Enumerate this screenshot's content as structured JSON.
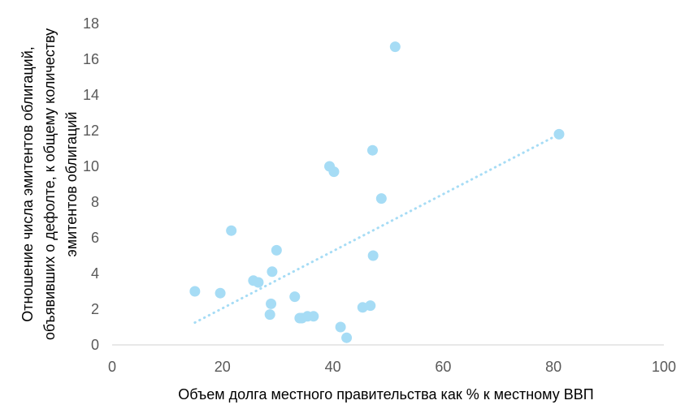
{
  "chart_data": {
    "type": "scatter",
    "xlabel": "Объем долга местного правительства как % к местному ВВП",
    "ylabel_lines": [
      "Отношение числа эмитентов облигаций,",
      "объявивших о дефолте, к общему количеству",
      "эмитентов облигаций"
    ],
    "xlim": [
      0,
      100
    ],
    "ylim": [
      0,
      18
    ],
    "x_ticks": [
      0,
      20,
      40,
      60,
      80,
      100
    ],
    "y_ticks": [
      0,
      2,
      4,
      6,
      8,
      10,
      12,
      14,
      16,
      18
    ],
    "x_tick_labels": [
      "0",
      "20",
      "40",
      "60",
      "80",
      "100"
    ],
    "y_tick_labels": [
      "0",
      "2",
      "4",
      "6",
      "8",
      "10",
      "12",
      "14",
      "16",
      "18"
    ],
    "grid": false,
    "legend": "none",
    "marker_color": "#a6dcf5",
    "trendline_color": "#a6dcf5",
    "trendline": {
      "style": "dotted",
      "x": [
        15,
        81
      ],
      "y": [
        1.25,
        11.8
      ]
    },
    "points": [
      {
        "x": 15.0,
        "y": 3.0
      },
      {
        "x": 19.6,
        "y": 2.9
      },
      {
        "x": 21.6,
        "y": 6.4
      },
      {
        "x": 25.6,
        "y": 3.6
      },
      {
        "x": 26.5,
        "y": 3.5
      },
      {
        "x": 28.6,
        "y": 1.7
      },
      {
        "x": 28.8,
        "y": 2.3
      },
      {
        "x": 29.0,
        "y": 4.1
      },
      {
        "x": 29.8,
        "y": 5.3
      },
      {
        "x": 33.1,
        "y": 2.7
      },
      {
        "x": 34.0,
        "y": 1.5
      },
      {
        "x": 34.4,
        "y": 1.5
      },
      {
        "x": 35.4,
        "y": 1.6
      },
      {
        "x": 36.5,
        "y": 1.6
      },
      {
        "x": 39.4,
        "y": 10.0
      },
      {
        "x": 40.2,
        "y": 9.7
      },
      {
        "x": 41.4,
        "y": 1.0
      },
      {
        "x": 42.5,
        "y": 0.4
      },
      {
        "x": 45.4,
        "y": 2.1
      },
      {
        "x": 46.8,
        "y": 2.2
      },
      {
        "x": 47.2,
        "y": 10.9
      },
      {
        "x": 47.3,
        "y": 5.0
      },
      {
        "x": 48.8,
        "y": 8.2
      },
      {
        "x": 51.3,
        "y": 16.7
      },
      {
        "x": 81.0,
        "y": 11.8
      }
    ]
  }
}
